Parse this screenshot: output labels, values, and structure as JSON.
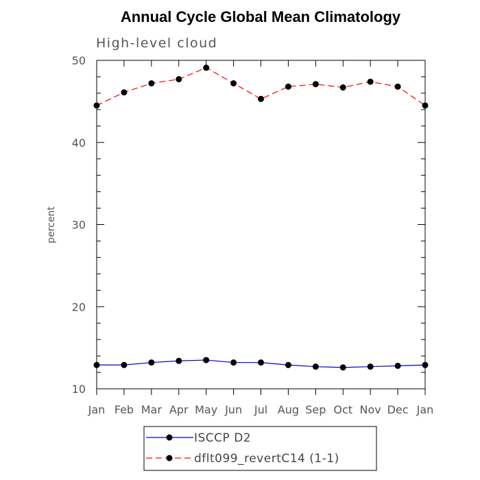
{
  "chart_data": {
    "type": "line",
    "title": "Annual Cycle Global Mean Climatology",
    "subtitle": "High-level cloud",
    "xlabel": "",
    "ylabel": "percent",
    "categories": [
      "Jan",
      "Feb",
      "Mar",
      "Apr",
      "May",
      "Jun",
      "Jul",
      "Aug",
      "Sep",
      "Oct",
      "Nov",
      "Dec",
      "Jan"
    ],
    "ylim": [
      10,
      50
    ],
    "yticks": [
      10,
      20,
      30,
      40,
      50
    ],
    "yminor_step": 2,
    "grid": false,
    "legend_position": "bottom",
    "series": [
      {
        "name": "ISCCP D2",
        "color": "#0000cc",
        "dash": "solid",
        "marker": "filled-circle",
        "values": [
          12.9,
          12.9,
          13.2,
          13.4,
          13.5,
          13.2,
          13.2,
          12.9,
          12.7,
          12.6,
          12.7,
          12.8,
          12.9
        ]
      },
      {
        "name": "dflt099_revertC14 (1-1)",
        "color": "#ff0000",
        "dash": "dashed",
        "marker": "filled-circle",
        "values": [
          44.5,
          46.1,
          47.2,
          47.7,
          49.1,
          47.2,
          45.3,
          46.8,
          47.1,
          46.7,
          47.4,
          46.8,
          44.5
        ]
      }
    ]
  }
}
